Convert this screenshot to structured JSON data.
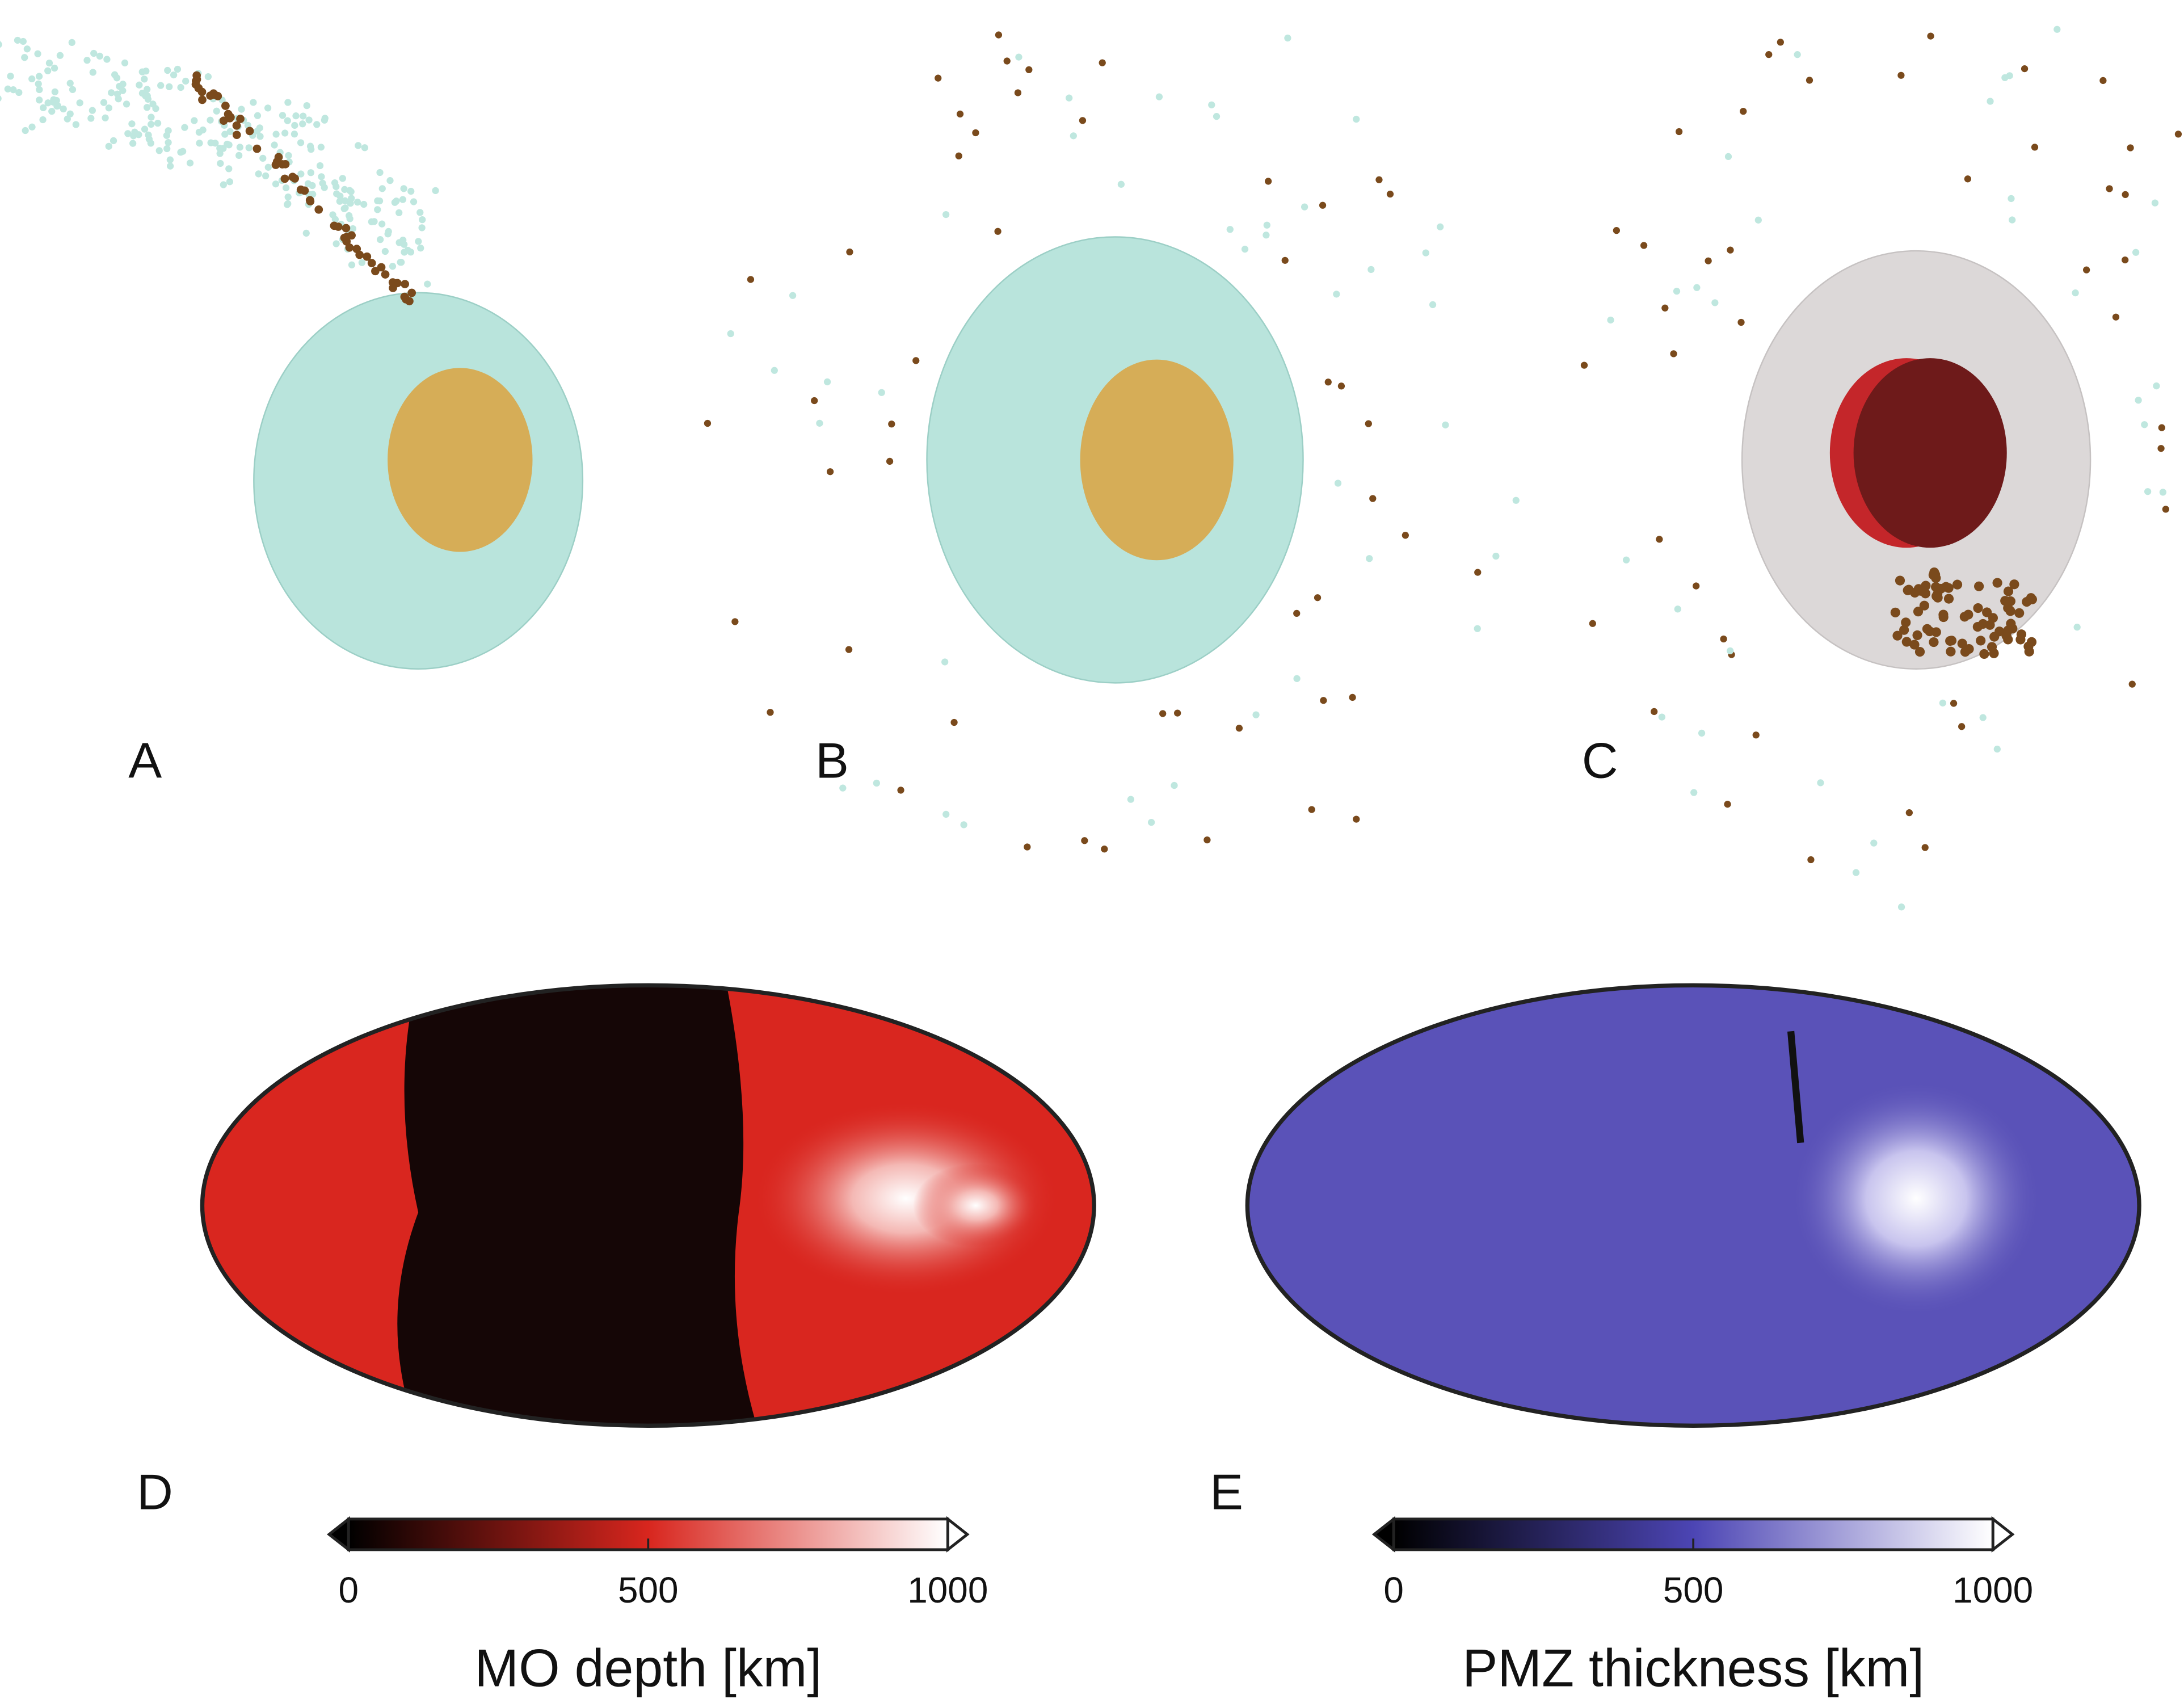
{
  "panels": [
    {
      "label": "A"
    },
    {
      "label": "B"
    },
    {
      "label": "C"
    },
    {
      "label": "D",
      "colorbar": {
        "title": "MO depth [km]",
        "range": [
          0,
          1000
        ],
        "ticks": [
          0,
          500,
          1000
        ],
        "colors": [
          "#000000",
          "#d8261e",
          "#ffffff"
        ]
      }
    },
    {
      "label": "E",
      "colorbar": {
        "title": "PMZ thickness [km]",
        "range": [
          0,
          1000
        ],
        "ticks": [
          0,
          500,
          1000
        ],
        "colors": [
          "#000000",
          "#4c45b4",
          "#ffffff"
        ]
      }
    }
  ]
}
